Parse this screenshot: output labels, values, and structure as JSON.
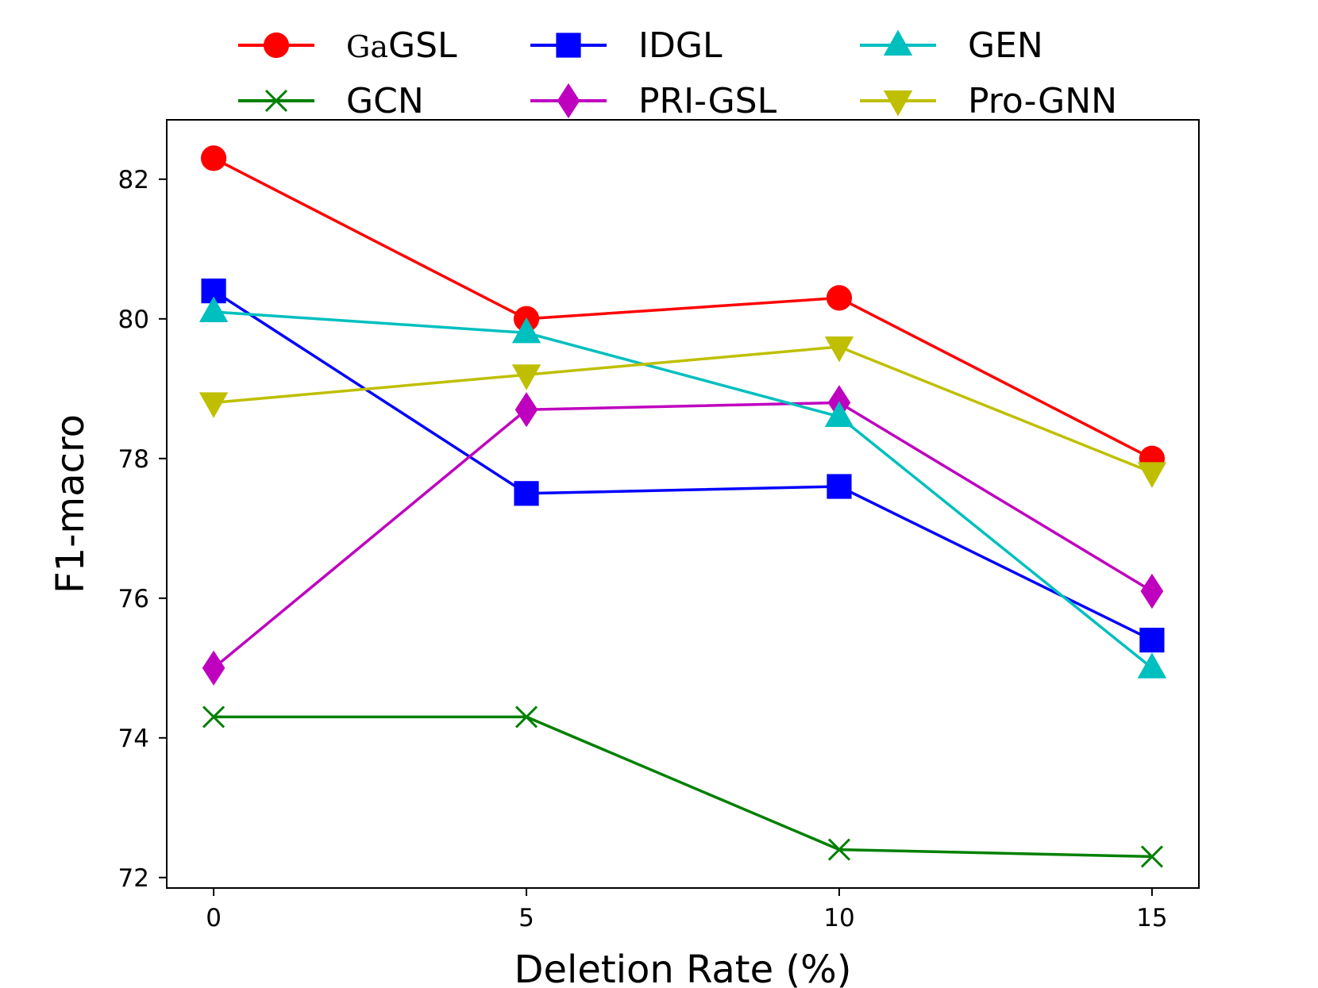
{
  "chart_data": {
    "type": "line",
    "title": "",
    "xlabel": "Deletion Rate (%)",
    "ylabel": "F1-macro",
    "x": [
      0,
      5,
      10,
      15
    ],
    "xticks": [
      "0",
      "5",
      "10",
      "15"
    ],
    "yticks": [
      "72",
      "74",
      "76",
      "78",
      "80",
      "82"
    ],
    "xlim": [
      -0.75,
      15.75
    ],
    "ylim": [
      71.85,
      82.85
    ],
    "grid": false,
    "legend_position": "top, outside plot, 3 columns",
    "series": [
      {
        "name": "GaGSL",
        "name_prefix": "Ga",
        "name_suffix": "GSL",
        "color": "#ff0000",
        "marker": "circle",
        "values": [
          82.3,
          80.0,
          80.3,
          78.0
        ]
      },
      {
        "name": "GCN",
        "color": "#008000",
        "marker": "x",
        "values": [
          74.3,
          74.3,
          72.4,
          72.3
        ]
      },
      {
        "name": "IDGL",
        "color": "#0000ff",
        "marker": "square",
        "values": [
          80.4,
          77.5,
          77.6,
          75.4
        ]
      },
      {
        "name": "PRI-GSL",
        "color": "#bf00bf",
        "marker": "diamond",
        "values": [
          75.0,
          78.7,
          78.8,
          76.1
        ]
      },
      {
        "name": "GEN",
        "color": "#00bfbf",
        "marker": "triangle-up",
        "values": [
          80.1,
          79.8,
          78.6,
          75.0
        ]
      },
      {
        "name": "Pro-GNN",
        "color": "#bfbf00",
        "marker": "triangle-down",
        "values": [
          78.8,
          79.2,
          79.6,
          77.8
        ]
      }
    ]
  }
}
